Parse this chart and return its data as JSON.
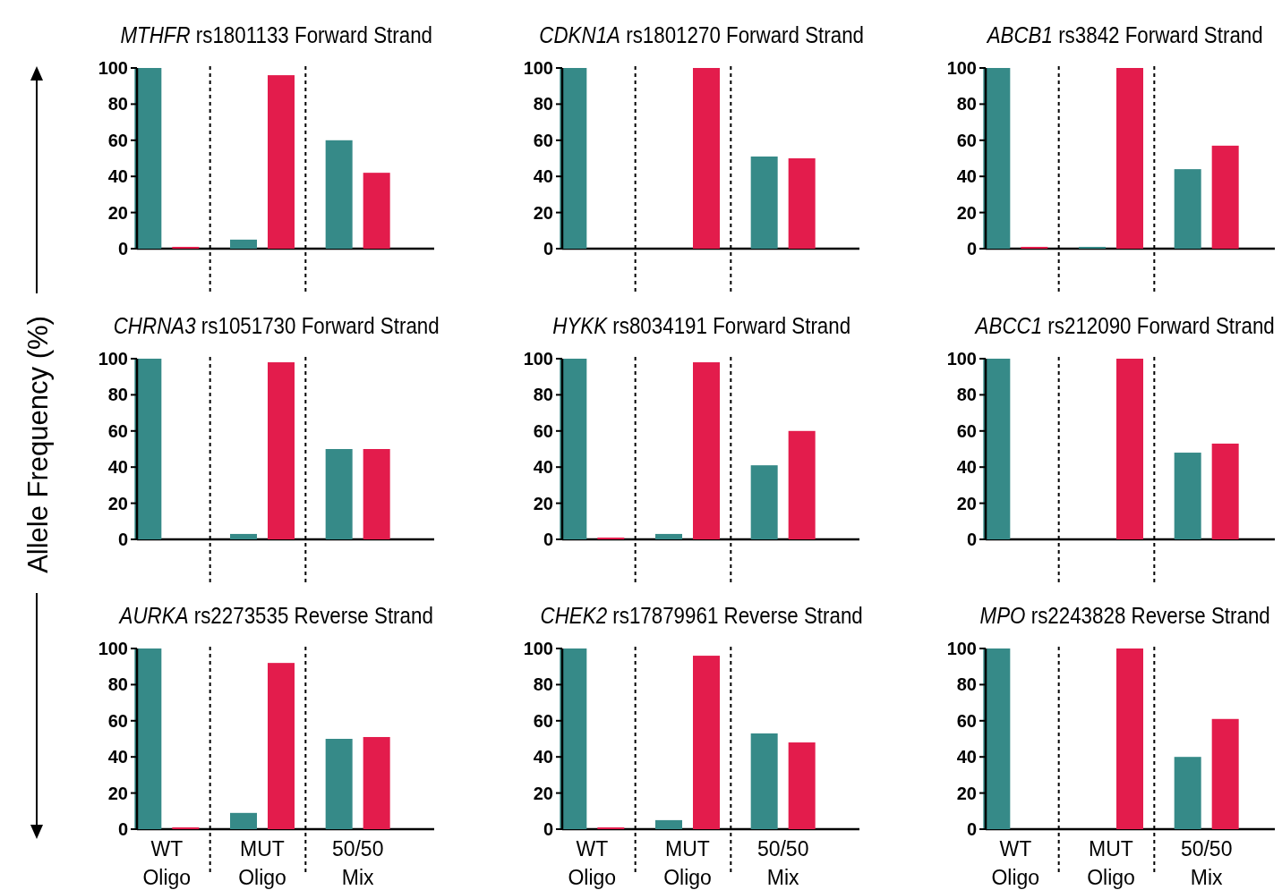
{
  "chart_data": [
    {
      "type": "bar",
      "title": "MTHFR rs1801133 Forward Strand",
      "categories": [
        null,
        null,
        null
      ],
      "series": [
        {
          "color": "#368a88",
          "values": [
            100,
            5,
            60
          ]
        },
        {
          "color": "#e31c4c",
          "values": [
            1,
            96,
            42
          ]
        }
      ],
      "ylim": [
        0,
        100
      ],
      "yticks": [
        0,
        20,
        40,
        60,
        80,
        100
      ]
    },
    {
      "type": "bar",
      "title": "CDKN1A rs1801270 Forward Strand",
      "categories": [
        null,
        null,
        null
      ],
      "series": [
        {
          "color": "#368a88",
          "values": [
            100,
            0,
            51
          ]
        },
        {
          "color": "#e31c4c",
          "values": [
            0,
            100,
            50
          ]
        }
      ],
      "ylim": [
        0,
        100
      ],
      "yticks": [
        0,
        20,
        40,
        60,
        80,
        100
      ]
    },
    {
      "type": "bar",
      "title": "ABCB1 rs3842 Forward Strand",
      "categories": [
        null,
        null,
        null
      ],
      "series": [
        {
          "color": "#368a88",
          "values": [
            100,
            1,
            44
          ]
        },
        {
          "color": "#e31c4c",
          "values": [
            1,
            100,
            57
          ]
        }
      ],
      "ylim": [
        0,
        100
      ],
      "yticks": [
        0,
        20,
        40,
        60,
        80,
        100
      ]
    },
    {
      "type": "bar",
      "title": "CHRNA3 rs1051730 Forward Strand",
      "ylabel": "Allele Frequency (%)",
      "categories": [
        null,
        null,
        null
      ],
      "series": [
        {
          "color": "#368a88",
          "values": [
            100,
            3,
            50
          ]
        },
        {
          "color": "#e31c4c",
          "values": [
            0,
            98,
            50
          ]
        }
      ],
      "ylim": [
        0,
        100
      ],
      "yticks": [
        0,
        20,
        40,
        60,
        80,
        100
      ]
    },
    {
      "type": "bar",
      "title": "HYKK rs8034191 Forward Strand",
      "categories": [
        null,
        null,
        null
      ],
      "series": [
        {
          "color": "#368a88",
          "values": [
            100,
            3,
            41
          ]
        },
        {
          "color": "#e31c4c",
          "values": [
            1,
            98,
            60
          ]
        }
      ],
      "ylim": [
        0,
        100
      ],
      "yticks": [
        0,
        20,
        40,
        60,
        80,
        100
      ]
    },
    {
      "type": "bar",
      "title": "ABCC1 rs212090 Forward Strand",
      "categories": [
        null,
        null,
        null
      ],
      "series": [
        {
          "color": "#368a88",
          "values": [
            100,
            0,
            48
          ]
        },
        {
          "color": "#e31c4c",
          "values": [
            0,
            100,
            53
          ]
        }
      ],
      "ylim": [
        0,
        100
      ],
      "yticks": [
        0,
        20,
        40,
        60,
        80,
        100
      ]
    },
    {
      "type": "bar",
      "title": "AURKA rs2273535 Reverse Strand",
      "categories": [
        "WT Oligo",
        "MUT Oligo",
        "50/50 Mix"
      ],
      "series": [
        {
          "color": "#368a88",
          "values": [
            100,
            9,
            50
          ]
        },
        {
          "color": "#e31c4c",
          "values": [
            1,
            92,
            51
          ]
        }
      ],
      "ylim": [
        0,
        100
      ],
      "yticks": [
        0,
        20,
        40,
        60,
        80,
        100
      ]
    },
    {
      "type": "bar",
      "title": "CHEK2 rs17879961 Reverse Strand",
      "categories": [
        "WT Oligo",
        "MUT Oligo",
        "50/50 Mix"
      ],
      "series": [
        {
          "color": "#368a88",
          "values": [
            100,
            5,
            53
          ]
        },
        {
          "color": "#e31c4c",
          "values": [
            1,
            96,
            48
          ]
        }
      ],
      "ylim": [
        0,
        100
      ],
      "yticks": [
        0,
        20,
        40,
        60,
        80,
        100
      ]
    },
    {
      "type": "bar",
      "title": "MPO rs2243828 Reverse Strand",
      "categories": [
        "WT Oligo",
        "MUT Oligo",
        "50/50 Mix"
      ],
      "series": [
        {
          "color": "#368a88",
          "values": [
            100,
            0,
            40
          ]
        },
        {
          "color": "#e31c4c",
          "values": [
            0,
            100,
            61
          ]
        }
      ],
      "ylim": [
        0,
        100
      ],
      "yticks": [
        0,
        20,
        40,
        60,
        80,
        100
      ]
    }
  ]
}
